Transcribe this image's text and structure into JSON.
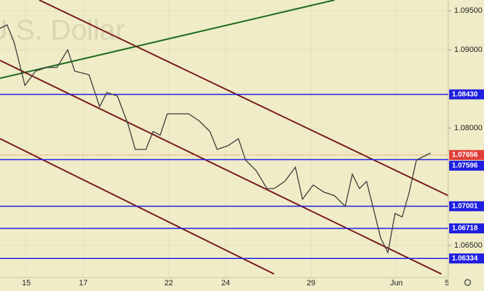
{
  "chart_data": {
    "type": "line",
    "watermark": "U.S. Dollar",
    "x": [
      -0.925,
      -0.675,
      -0.425,
      -0.05,
      0.325,
      0.7,
      1.075,
      1.45,
      1.7,
      2.2,
      2.575,
      2.825,
      3.2,
      3.575,
      3.825,
      4.2,
      4.45,
      4.7,
      4.95,
      5.325,
      5.7,
      6.075,
      6.45,
      6.7,
      7.075,
      7.45,
      7.7,
      8.075,
      8.45,
      8.7,
      9.075,
      9.45,
      9.7,
      10.075,
      10.45,
      10.825,
      11.2,
      11.45,
      11.7,
      11.95,
      12.2,
      12.45,
      12.7,
      12.95,
      13.2,
      13.45,
      13.7,
      13.95,
      14.2
    ],
    "values": [
      1.09273,
      1.09318,
      1.09091,
      1.08545,
      1.08727,
      1.08773,
      1.08773,
      1.09,
      1.08727,
      1.08682,
      1.08273,
      1.08455,
      1.08409,
      1.08045,
      1.07727,
      1.07727,
      1.07955,
      1.07909,
      1.08182,
      1.08182,
      1.08182,
      1.08091,
      1.07955,
      1.07727,
      1.07773,
      1.07864,
      1.07591,
      1.07455,
      1.07227,
      1.07227,
      1.07318,
      1.075,
      1.07091,
      1.07273,
      1.07182,
      1.07136,
      1.07,
      1.0741,
      1.07227,
      1.07318,
      1.06955,
      1.06591,
      1.06409,
      1.06909,
      1.06864,
      1.07182,
      1.07591,
      1.07636,
      1.07682
    ],
    "color": "#3a3a3a",
    "xlim": [
      -0.925,
      14.825
    ],
    "xticks": [
      {
        "value": 0,
        "label": "15"
      },
      {
        "value": 2,
        "label": "17"
      },
      {
        "value": 5,
        "label": "22"
      },
      {
        "value": 7,
        "label": "24"
      },
      {
        "value": 10,
        "label": "29"
      },
      {
        "value": 13,
        "label": "Jun"
      },
      {
        "value": 14.775,
        "label": "5"
      }
    ],
    "ylim": [
      1.06091,
      1.09636
    ],
    "yticks": [
      {
        "value": 1.065,
        "label": "1.06500"
      },
      {
        "value": 1.08,
        "label": "1.08000"
      },
      {
        "value": 1.09,
        "label": "1.09000"
      },
      {
        "value": 1.095,
        "label": "1.09500"
      }
    ],
    "levels": {
      "values": [
        1.0843,
        1.07596,
        1.07001,
        1.06718,
        1.06334
      ],
      "value_labels": [
        "1.08430",
        "1.07596",
        "1.07001",
        "1.06718",
        "1.06334"
      ],
      "color": "#1f1fe0"
    },
    "last_price": {
      "value": 1.07656,
      "label": "1.07656",
      "color": "#e0403a"
    },
    "trendlines": [
      {
        "x": [
          -0.925,
          10.825
        ],
        "values": [
          1.08636,
          1.09636
        ],
        "color": "#1e6b1e"
      },
      {
        "x": [
          0.45,
          14.825
        ],
        "values": [
          1.09636,
          1.07136
        ],
        "color": "#7a1a1a"
      },
      {
        "x": [
          -0.925,
          14.575
        ],
        "values": [
          1.08864,
          1.06136
        ],
        "color": "#7a1a1a"
      },
      {
        "x": [
          -0.925,
          8.7
        ],
        "values": [
          1.07864,
          1.06136
        ],
        "color": "#7a1a1a"
      }
    ]
  }
}
